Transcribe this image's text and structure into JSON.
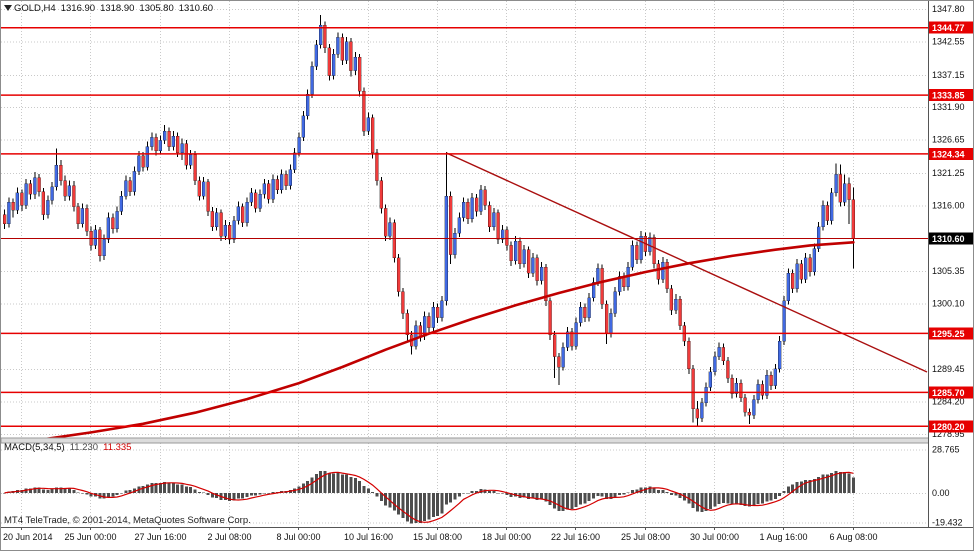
{
  "window": {
    "quote_line": {
      "symbol": "GOLD,H4",
      "open": "1316.90",
      "high": "1318.90",
      "low": "1305.80",
      "close": "1310.60"
    }
  },
  "footer": {
    "copyright": "MT4 TeleTrade, © 2001-2014, MetaQuotes Software Corp."
  },
  "colors": {
    "background": "#FFFFFF",
    "grid": "#C9C9C9",
    "candle_up": "#4169E1",
    "candle_down": "#EF3B3B",
    "candle_outline": "#000000",
    "level_line": "#E60000",
    "level_label_bg": "#E60000",
    "current_label_bg": "#000000",
    "label_text": "#FFFFFF",
    "axis_text": "#111111",
    "ma_line": "#C00000",
    "trend_line": "#AA0F0F",
    "hist_bar": "#4D4D4D",
    "signal_line": "#D40000",
    "axis_line": "#555555",
    "separator": "#DCDCDC"
  },
  "chart_data": {
    "type": "candlestick",
    "title": "GOLD H4 chart with MACD(5,34,5)",
    "symbol": "GOLD",
    "timeframe": "H4",
    "x_labels": [
      "20 Jun 2014",
      "25 Jun 00:00",
      "27 Jun 16:00",
      "2 Jul 08:00",
      "8 Jul 00:00",
      "10 Jul 16:00",
      "15 Jul 08:00",
      "18 Jul 00:00",
      "22 Jul 16:00",
      "25 Jul 08:00",
      "30 Jul 00:00",
      "1 Aug 16:00",
      "6 Aug 08:00"
    ],
    "y_ticks": [
      1347.8,
      1342.55,
      1337.15,
      1331.9,
      1326.65,
      1321.25,
      1316.0,
      1305.35,
      1300.1,
      1289.45,
      1284.2,
      1278.95
    ],
    "price_range": {
      "top": 1349.1,
      "bottom": 1278.3
    },
    "levels": {
      "resistance_support": [
        1344.77,
        1333.85,
        1324.34,
        1295.25,
        1285.7,
        1280.2
      ],
      "current_price": 1310.6
    },
    "trendline": {
      "from": {
        "bar": 102,
        "price": 1324.5
      },
      "to": {
        "bar": 213,
        "price": 1289.0
      }
    },
    "moving_average": {
      "points": [
        [
          8,
          1278.0
        ],
        [
          20,
          1279.2
        ],
        [
          32,
          1280.6
        ],
        [
          44,
          1282.4
        ],
        [
          56,
          1284.6
        ],
        [
          68,
          1287.2
        ],
        [
          78,
          1289.8
        ],
        [
          88,
          1292.6
        ],
        [
          98,
          1295.2
        ],
        [
          108,
          1297.6
        ],
        [
          118,
          1299.8
        ],
        [
          128,
          1301.8
        ],
        [
          138,
          1303.6
        ],
        [
          148,
          1305.2
        ],
        [
          158,
          1306.6
        ],
        [
          168,
          1307.8
        ],
        [
          178,
          1308.8
        ],
        [
          186,
          1309.5
        ],
        [
          196,
          1310.0
        ]
      ]
    },
    "indicator": {
      "name": "MACD(5,34,5)",
      "main_value": "11.230",
      "signal_value": "11.335",
      "y_ticks": [
        {
          "v": 28.765,
          "label": "28.765"
        },
        {
          "v": 0,
          "label": "0.00"
        },
        {
          "v": -19.432,
          "label": "-19.432"
        }
      ],
      "range": {
        "top": 33.0,
        "bottom": -22.5
      }
    },
    "candles": [
      [
        1314.5,
        1315.3,
        1312.2,
        1313.0
      ],
      [
        1313.0,
        1317.3,
        1312.4,
        1316.5
      ],
      [
        1316.5,
        1317.1,
        1314.0,
        1315.2
      ],
      [
        1315.2,
        1318.9,
        1314.6,
        1318.0
      ],
      [
        1318.0,
        1318.6,
        1315.1,
        1316.0
      ],
      [
        1316.0,
        1320.3,
        1315.4,
        1319.5
      ],
      [
        1319.5,
        1320.1,
        1316.9,
        1317.8
      ],
      [
        1317.8,
        1321.4,
        1317.0,
        1320.5
      ],
      [
        1320.5,
        1321.1,
        1317.4,
        1318.2
      ],
      [
        1318.2,
        1318.8,
        1313.6,
        1314.5
      ],
      [
        1314.5,
        1317.6,
        1313.9,
        1316.8
      ],
      [
        1316.8,
        1319.8,
        1316.1,
        1319.0
      ],
      [
        1319.0,
        1325.2,
        1318.4,
        1322.5
      ],
      [
        1322.5,
        1323.3,
        1319.2,
        1320.0
      ],
      [
        1320.0,
        1320.8,
        1316.7,
        1317.5
      ],
      [
        1317.5,
        1320.0,
        1316.8,
        1319.2
      ],
      [
        1319.2,
        1319.9,
        1315.0,
        1315.8
      ],
      [
        1315.8,
        1316.4,
        1312.2,
        1313.0
      ],
      [
        1313.0,
        1316.3,
        1312.4,
        1315.5
      ],
      [
        1315.5,
        1316.1,
        1311.0,
        1311.8
      ],
      [
        1311.8,
        1312.6,
        1308.7,
        1309.5
      ],
      [
        1309.5,
        1312.8,
        1308.9,
        1312.0
      ],
      [
        1312.0,
        1312.5,
        1306.9,
        1307.8
      ],
      [
        1307.8,
        1311.3,
        1307.1,
        1310.5
      ],
      [
        1310.5,
        1314.8,
        1309.9,
        1314.0
      ],
      [
        1314.0,
        1314.7,
        1311.4,
        1312.2
      ],
      [
        1312.2,
        1315.8,
        1311.6,
        1315.0
      ],
      [
        1315.0,
        1318.3,
        1314.4,
        1317.5
      ],
      [
        1317.5,
        1320.8,
        1316.9,
        1320.0
      ],
      [
        1320.0,
        1320.6,
        1317.5,
        1318.2
      ],
      [
        1318.2,
        1322.3,
        1317.6,
        1321.5
      ],
      [
        1321.5,
        1324.8,
        1320.9,
        1324.0
      ],
      [
        1324.0,
        1324.6,
        1321.5,
        1322.2
      ],
      [
        1322.2,
        1326.3,
        1321.6,
        1325.5
      ],
      [
        1325.5,
        1327.8,
        1324.9,
        1327.0
      ],
      [
        1327.0,
        1327.6,
        1324.1,
        1324.8
      ],
      [
        1324.8,
        1327.3,
        1324.2,
        1326.5
      ],
      [
        1326.5,
        1329.0,
        1325.9,
        1328.0
      ],
      [
        1328.0,
        1328.6,
        1324.8,
        1325.5
      ],
      [
        1325.5,
        1328.0,
        1324.9,
        1327.2
      ],
      [
        1327.2,
        1327.8,
        1323.8,
        1324.5
      ],
      [
        1324.5,
        1326.8,
        1323.3,
        1326.0
      ],
      [
        1326.0,
        1326.6,
        1321.8,
        1322.5
      ],
      [
        1322.5,
        1325.0,
        1321.9,
        1324.2
      ],
      [
        1324.2,
        1324.8,
        1319.3,
        1320.0
      ],
      [
        1320.0,
        1320.7,
        1316.8,
        1317.5
      ],
      [
        1317.5,
        1320.6,
        1316.9,
        1319.8
      ],
      [
        1319.8,
        1320.3,
        1314.3,
        1315.0
      ],
      [
        1315.0,
        1315.7,
        1311.8,
        1312.5
      ],
      [
        1312.5,
        1315.6,
        1311.9,
        1314.8
      ],
      [
        1314.8,
        1315.3,
        1310.2,
        1311.0
      ],
      [
        1311.0,
        1313.6,
        1310.4,
        1312.8
      ],
      [
        1312.8,
        1313.3,
        1309.7,
        1310.5
      ],
      [
        1310.5,
        1314.3,
        1309.9,
        1313.5
      ],
      [
        1313.5,
        1316.6,
        1312.9,
        1315.8
      ],
      [
        1315.8,
        1316.3,
        1312.5,
        1313.2
      ],
      [
        1313.2,
        1317.3,
        1312.6,
        1316.5
      ],
      [
        1316.5,
        1318.8,
        1315.9,
        1318.0
      ],
      [
        1318.0,
        1318.6,
        1314.8,
        1315.5
      ],
      [
        1315.5,
        1318.6,
        1314.9,
        1317.8
      ],
      [
        1317.8,
        1320.3,
        1317.1,
        1319.5
      ],
      [
        1319.5,
        1320.1,
        1316.3,
        1317.0
      ],
      [
        1317.0,
        1321.0,
        1316.4,
        1320.2
      ],
      [
        1320.2,
        1320.8,
        1317.8,
        1318.5
      ],
      [
        1318.5,
        1321.8,
        1317.9,
        1321.0
      ],
      [
        1321.0,
        1321.6,
        1318.5,
        1319.2
      ],
      [
        1319.2,
        1322.6,
        1318.6,
        1321.8
      ],
      [
        1321.8,
        1325.3,
        1321.2,
        1324.5
      ],
      [
        1324.5,
        1327.8,
        1323.9,
        1327.0
      ],
      [
        1327.0,
        1331.3,
        1326.4,
        1330.5
      ],
      [
        1330.5,
        1334.8,
        1329.9,
        1334.0
      ],
      [
        1334.0,
        1339.3,
        1333.4,
        1338.5
      ],
      [
        1338.5,
        1342.8,
        1337.9,
        1342.0
      ],
      [
        1342.0,
        1346.8,
        1341.4,
        1345.2
      ],
      [
        1345.2,
        1345.8,
        1340.7,
        1341.5
      ],
      [
        1341.5,
        1342.1,
        1336.2,
        1337.0
      ],
      [
        1337.0,
        1341.3,
        1336.4,
        1340.5
      ],
      [
        1340.5,
        1344.0,
        1339.9,
        1343.2
      ],
      [
        1343.2,
        1343.8,
        1338.7,
        1339.5
      ],
      [
        1339.5,
        1343.3,
        1338.9,
        1342.5
      ],
      [
        1342.5,
        1343.1,
        1336.9,
        1337.8
      ],
      [
        1337.8,
        1340.8,
        1337.1,
        1340.0
      ],
      [
        1340.0,
        1340.5,
        1333.6,
        1334.5
      ],
      [
        1334.5,
        1335.1,
        1327.2,
        1328.0
      ],
      [
        1328.0,
        1331.0,
        1327.4,
        1330.2
      ],
      [
        1330.2,
        1330.7,
        1323.6,
        1324.5
      ],
      [
        1324.5,
        1325.1,
        1319.2,
        1320.0
      ],
      [
        1320.0,
        1320.6,
        1314.7,
        1315.5
      ],
      [
        1315.5,
        1316.1,
        1310.2,
        1311.0
      ],
      [
        1311.0,
        1314.0,
        1310.4,
        1313.2
      ],
      [
        1313.2,
        1313.7,
        1306.7,
        1307.5
      ],
      [
        1307.5,
        1308.1,
        1301.2,
        1302.0
      ],
      [
        1302.0,
        1302.6,
        1297.6,
        1298.5
      ],
      [
        1298.5,
        1299.1,
        1293.9,
        1295.0
      ],
      [
        1295.0,
        1295.6,
        1291.8,
        1293.2
      ],
      [
        1293.2,
        1297.3,
        1292.6,
        1296.5
      ],
      [
        1296.5,
        1297.1,
        1293.9,
        1294.8
      ],
      [
        1294.8,
        1298.8,
        1294.2,
        1298.0
      ],
      [
        1298.0,
        1298.6,
        1295.4,
        1296.2
      ],
      [
        1296.2,
        1300.3,
        1295.6,
        1299.5
      ],
      [
        1299.5,
        1300.1,
        1296.9,
        1297.8
      ],
      [
        1297.8,
        1301.3,
        1297.2,
        1300.5
      ],
      [
        1300.5,
        1324.6,
        1299.8,
        1317.5
      ],
      [
        1317.5,
        1318.2,
        1306.5,
        1308.0
      ],
      [
        1308.0,
        1312.3,
        1307.4,
        1311.5
      ],
      [
        1311.5,
        1314.8,
        1310.9,
        1314.0
      ],
      [
        1314.0,
        1317.3,
        1313.4,
        1316.5
      ],
      [
        1316.5,
        1317.1,
        1313.0,
        1313.8
      ],
      [
        1313.8,
        1318.0,
        1313.2,
        1317.2
      ],
      [
        1317.2,
        1317.8,
        1314.2,
        1315.0
      ],
      [
        1315.0,
        1319.3,
        1314.4,
        1318.5
      ],
      [
        1318.5,
        1319.1,
        1315.2,
        1316.0
      ],
      [
        1316.0,
        1316.6,
        1311.7,
        1312.5
      ],
      [
        1312.5,
        1315.6,
        1311.9,
        1314.8
      ],
      [
        1314.8,
        1315.3,
        1309.7,
        1310.5
      ],
      [
        1310.5,
        1312.8,
        1309.9,
        1312.0
      ],
      [
        1312.0,
        1312.6,
        1308.7,
        1309.5
      ],
      [
        1309.5,
        1310.1,
        1306.2,
        1307.0
      ],
      [
        1307.0,
        1311.0,
        1306.4,
        1310.2
      ],
      [
        1310.2,
        1310.8,
        1305.7,
        1306.5
      ],
      [
        1306.5,
        1309.6,
        1305.9,
        1308.8
      ],
      [
        1308.8,
        1309.3,
        1304.2,
        1305.0
      ],
      [
        1305.0,
        1308.3,
        1304.4,
        1307.5
      ],
      [
        1307.5,
        1308.0,
        1303.0,
        1303.8
      ],
      [
        1303.8,
        1306.8,
        1303.2,
        1306.0
      ],
      [
        1306.0,
        1306.5,
        1299.7,
        1300.5
      ],
      [
        1300.5,
        1301.1,
        1294.2,
        1295.0
      ],
      [
        1295.0,
        1295.6,
        1288.0,
        1291.5
      ],
      [
        1291.5,
        1292.1,
        1286.9,
        1289.8
      ],
      [
        1289.8,
        1293.8,
        1289.2,
        1293.0
      ],
      [
        1293.0,
        1296.3,
        1292.4,
        1295.5
      ],
      [
        1295.5,
        1296.1,
        1292.5,
        1293.2
      ],
      [
        1293.2,
        1297.8,
        1292.6,
        1297.0
      ],
      [
        1297.0,
        1300.3,
        1296.4,
        1299.5
      ],
      [
        1299.5,
        1300.1,
        1297.1,
        1297.8
      ],
      [
        1297.8,
        1301.8,
        1297.2,
        1301.0
      ],
      [
        1301.0,
        1304.3,
        1300.4,
        1303.5
      ],
      [
        1303.5,
        1306.6,
        1302.9,
        1305.8
      ],
      [
        1305.8,
        1306.4,
        1299.2,
        1300.0
      ],
      [
        1300.0,
        1300.6,
        1293.5,
        1295.2
      ],
      [
        1295.2,
        1299.3,
        1294.6,
        1298.5
      ],
      [
        1298.5,
        1302.8,
        1297.9,
        1302.0
      ],
      [
        1302.0,
        1305.3,
        1301.4,
        1304.5
      ],
      [
        1304.5,
        1305.1,
        1302.1,
        1302.8
      ],
      [
        1302.8,
        1306.8,
        1302.2,
        1306.0
      ],
      [
        1306.0,
        1310.3,
        1305.4,
        1309.5
      ],
      [
        1309.5,
        1310.1,
        1306.5,
        1307.2
      ],
      [
        1307.2,
        1311.8,
        1306.6,
        1311.0
      ],
      [
        1311.0,
        1311.6,
        1307.8,
        1308.5
      ],
      [
        1308.5,
        1311.6,
        1307.9,
        1310.8
      ],
      [
        1310.8,
        1311.3,
        1305.8,
        1306.5
      ],
      [
        1306.5,
        1307.1,
        1303.2,
        1304.0
      ],
      [
        1304.0,
        1307.6,
        1303.4,
        1306.8
      ],
      [
        1306.8,
        1307.3,
        1301.8,
        1302.5
      ],
      [
        1302.5,
        1303.1,
        1298.2,
        1299.0
      ],
      [
        1299.0,
        1301.6,
        1298.4,
        1300.8
      ],
      [
        1300.8,
        1301.3,
        1295.8,
        1296.5
      ],
      [
        1296.5,
        1297.1,
        1293.2,
        1294.0
      ],
      [
        1294.0,
        1294.6,
        1288.7,
        1289.5
      ],
      [
        1289.5,
        1290.1,
        1280.8,
        1283.0
      ],
      [
        1283.0,
        1284.3,
        1280.3,
        1281.5
      ],
      [
        1281.5,
        1284.8,
        1280.9,
        1284.0
      ],
      [
        1284.0,
        1287.3,
        1283.4,
        1286.5
      ],
      [
        1286.5,
        1289.8,
        1285.9,
        1289.0
      ],
      [
        1289.0,
        1292.3,
        1288.4,
        1291.5
      ],
      [
        1291.5,
        1293.8,
        1290.9,
        1293.0
      ],
      [
        1293.0,
        1293.6,
        1290.1,
        1290.8
      ],
      [
        1290.8,
        1291.4,
        1287.2,
        1288.0
      ],
      [
        1288.0,
        1288.6,
        1284.7,
        1285.5
      ],
      [
        1285.5,
        1288.0,
        1284.9,
        1287.2
      ],
      [
        1287.2,
        1287.8,
        1284.1,
        1284.8
      ],
      [
        1284.8,
        1285.4,
        1281.8,
        1282.5
      ],
      [
        1282.5,
        1283.1,
        1280.6,
        1282.0
      ],
      [
        1282.0,
        1285.3,
        1281.4,
        1284.5
      ],
      [
        1284.5,
        1287.8,
        1283.9,
        1287.0
      ],
      [
        1287.0,
        1287.6,
        1284.5,
        1285.2
      ],
      [
        1285.2,
        1289.3,
        1284.6,
        1288.5
      ],
      [
        1288.5,
        1289.1,
        1286.1,
        1286.8
      ],
      [
        1286.8,
        1290.3,
        1286.2,
        1289.5
      ],
      [
        1289.5,
        1294.8,
        1288.9,
        1294.0
      ],
      [
        1294.0,
        1301.3,
        1293.4,
        1300.5
      ],
      [
        1300.5,
        1305.8,
        1299.9,
        1305.0
      ],
      [
        1305.0,
        1305.6,
        1301.8,
        1302.5
      ],
      [
        1302.5,
        1307.3,
        1301.9,
        1306.5
      ],
      [
        1306.5,
        1307.1,
        1303.3,
        1304.0
      ],
      [
        1304.0,
        1308.3,
        1303.4,
        1307.5
      ],
      [
        1307.5,
        1308.1,
        1304.5,
        1305.2
      ],
      [
        1305.2,
        1309.8,
        1304.6,
        1309.0
      ],
      [
        1309.0,
        1313.3,
        1308.4,
        1312.5
      ],
      [
        1312.5,
        1316.8,
        1311.9,
        1316.0
      ],
      [
        1316.0,
        1316.6,
        1312.8,
        1313.5
      ],
      [
        1313.5,
        1318.8,
        1312.9,
        1318.0
      ],
      [
        1318.0,
        1322.8,
        1317.4,
        1321.0
      ],
      [
        1321.0,
        1322.6,
        1315.8,
        1316.5
      ],
      [
        1316.5,
        1321.0,
        1315.9,
        1319.5
      ],
      [
        1319.5,
        1320.5,
        1313.0,
        1316.9
      ],
      [
        1316.9,
        1318.9,
        1305.8,
        1310.6
      ]
    ]
  }
}
